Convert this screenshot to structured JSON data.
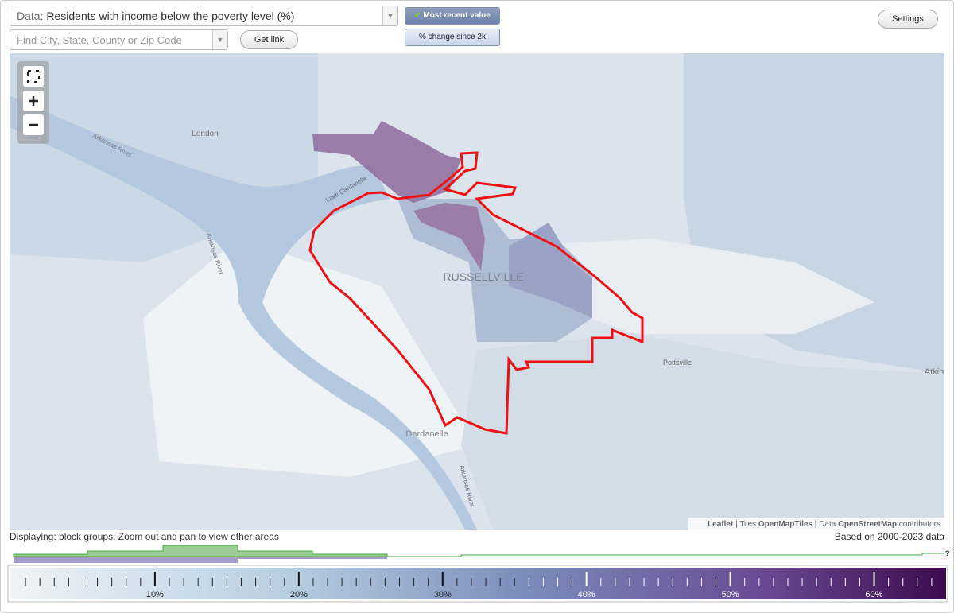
{
  "controls": {
    "data_label": "Data:",
    "data_value": "Residents with income below the poverty level (%)",
    "most_recent": "Most recent value",
    "change": "% change since 2k",
    "settings": "Settings",
    "search_placeholder": "Find City, State, County or Zip Code",
    "get_link": "Get link"
  },
  "map": {
    "labels": [
      "London",
      "Arkansas River",
      "Lake Dardanelle",
      "Arkansas River",
      "RUSSELLVILLE",
      "Pottsville",
      "Atkin",
      "Dardanelle",
      "Arkansas River"
    ],
    "attribution": [
      "Leaflet",
      "Tiles",
      "OpenMapTiles",
      "Data",
      "OpenStreetMap",
      "contributors"
    ]
  },
  "status": {
    "displaying": "Displaying: block groups. Zoom out and pan to view other areas",
    "based_on": "Based on 2000-2023 data"
  },
  "legend": {
    "range": [
      0,
      65
    ],
    "ticks": [
      {
        "value": 10,
        "label": "10%"
      },
      {
        "value": 20,
        "label": "20%"
      },
      {
        "value": 30,
        "label": "30%"
      },
      {
        "value": 40,
        "label": "40%"
      },
      {
        "value": 50,
        "label": "50%"
      },
      {
        "value": 60,
        "label": "60%"
      }
    ],
    "help": "?"
  }
}
